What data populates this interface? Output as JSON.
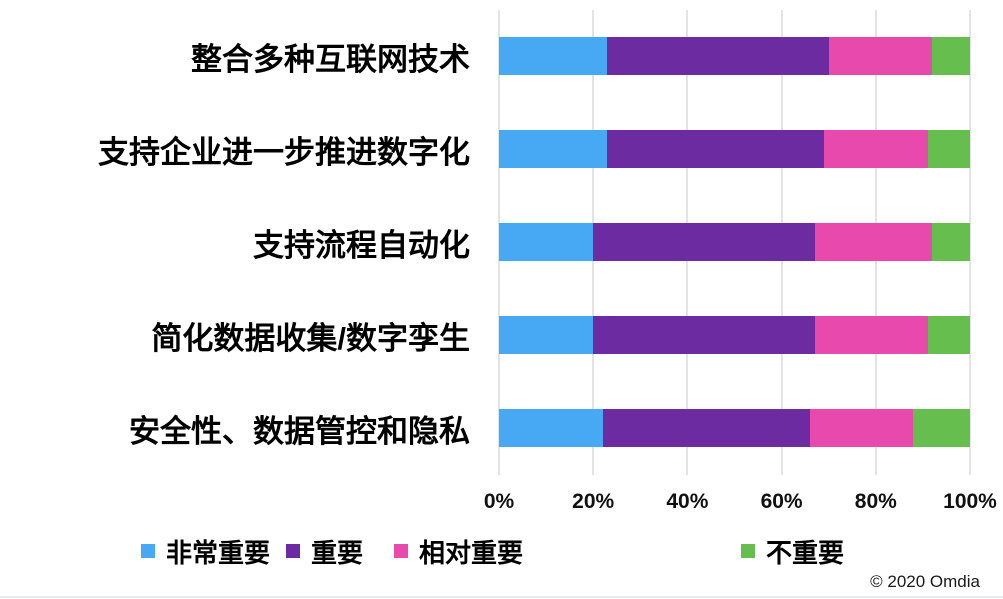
{
  "chart_data": {
    "type": "bar",
    "orientation": "horizontal",
    "stacked": true,
    "unit": "%",
    "categories": [
      "整合多种互联网技术",
      "支持企业进一步推进数字化",
      "支持流程自动化",
      "简化数据收集/数字孪生",
      "安全性、数据管控和隐私"
    ],
    "series": [
      {
        "name": "非常重要",
        "color": "#47A8F3",
        "values": [
          23,
          23,
          20,
          20,
          22
        ]
      },
      {
        "name": "重要",
        "color": "#6D2BA1",
        "values": [
          47,
          46,
          47,
          47,
          44
        ]
      },
      {
        "name": "相对重要",
        "color": "#E849AC",
        "values": [
          22,
          22,
          25,
          24,
          22
        ]
      },
      {
        "name": "不重要",
        "color": "#66BE4F",
        "values": [
          8,
          9,
          8,
          9,
          12
        ]
      }
    ],
    "x_axis": {
      "min": 0,
      "max": 100,
      "ticks": [
        "0%",
        "20%",
        "40%",
        "60%",
        "80%",
        "100%"
      ],
      "grid": true
    },
    "legend_position": "bottom"
  },
  "colors": {
    "gridline": "#E3E3E3",
    "bottom_rule": "#E8ECF1"
  },
  "footer": {
    "copyright": "© 2020 Omdia"
  }
}
